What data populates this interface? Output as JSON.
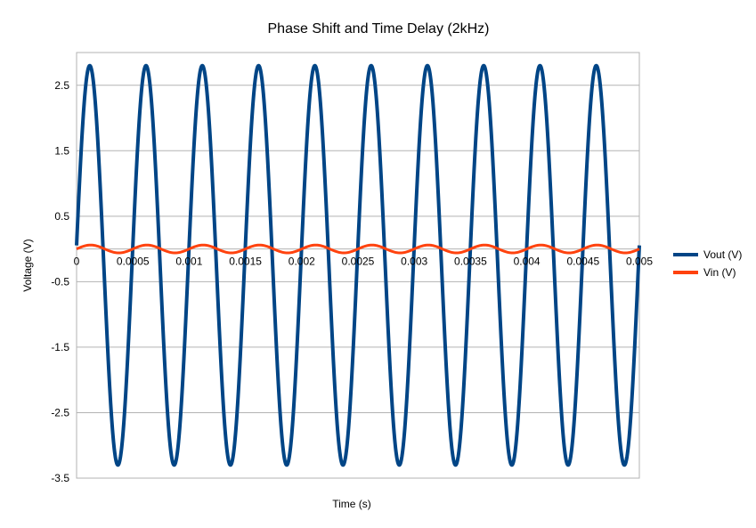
{
  "chart_data": {
    "type": "line",
    "title": "Phase Shift and Time Delay (2kHz)",
    "xlabel": "Time (s)",
    "ylabel": "Voltage (V)",
    "xlim": [
      0,
      0.005
    ],
    "ylim": [
      -3.5,
      3
    ],
    "grid": true,
    "legend_position": "right",
    "x_tick_labels": [
      "0",
      "0.0005",
      "0.001",
      "0.0015",
      "0.002",
      "0.0025",
      "0.003",
      "0.0035",
      "0.004",
      "0.0045",
      "0.005"
    ],
    "y_tick_labels": [
      "2.5",
      "1.5",
      "0.5",
      "-0.5",
      "-1.5",
      "-2.5",
      "-3.5"
    ],
    "y_tick_values": [
      2.5,
      1.5,
      0.5,
      -0.5,
      -1.5,
      -2.5,
      -3.5
    ],
    "series": [
      {
        "name": "Vout (V)",
        "color": "#004586",
        "frequency_hz": 2000,
        "offset_v": -0.25,
        "amplitude_v": 3.05,
        "phase_rad": 0.1,
        "cycles": 10,
        "peak_time_s": [
          0.00012,
          0.00062,
          0.00112,
          0.00162,
          0.00212,
          0.00262,
          0.00312,
          0.00362,
          0.00412,
          0.00462
        ],
        "peak_v": 2.8,
        "trough_v": -3.3
      },
      {
        "name": "Vin (V)",
        "color": "#ff420e",
        "frequency_hz": 2000,
        "offset_v": 0.0,
        "amplitude_v": 0.06,
        "phase_rad": 0.0,
        "peak_v": 0.06,
        "trough_v": -0.06
      }
    ]
  }
}
